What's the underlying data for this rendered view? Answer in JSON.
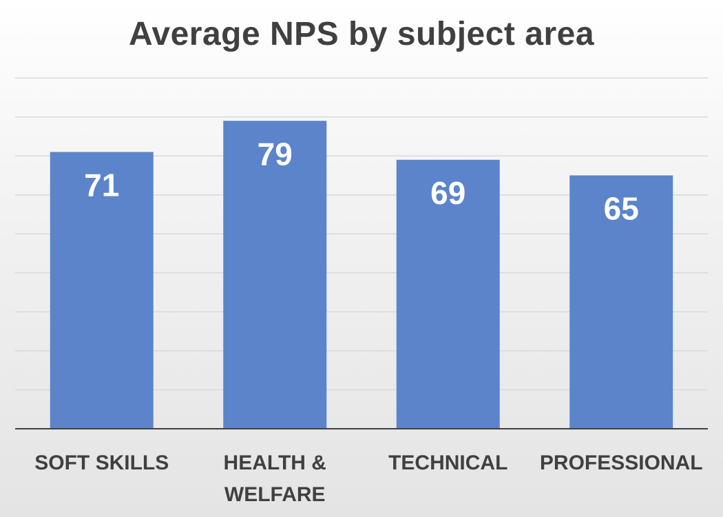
{
  "chart_data": {
    "type": "bar",
    "title": "Average NPS by subject area",
    "categories": [
      "SOFT SKILLS",
      "HEALTH & WELFARE",
      "TECHNICAL",
      "PROFESSIONAL"
    ],
    "category_lines": [
      [
        "SOFT SKILLS"
      ],
      [
        "HEALTH &",
        "WELFARE"
      ],
      [
        "TECHNICAL"
      ],
      [
        "PROFESSIONAL"
      ]
    ],
    "values": [
      71,
      79,
      69,
      65
    ],
    "data_labels": [
      "71",
      "79",
      "69",
      "65"
    ],
    "ylim": [
      0,
      90
    ],
    "grid": true,
    "legend": "none",
    "bar_color": "#5b84cb"
  }
}
